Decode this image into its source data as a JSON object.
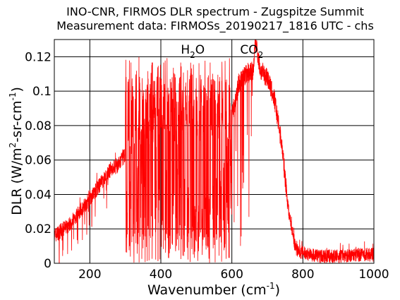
{
  "chart_data": {
    "type": "line",
    "title": "INO-CNR, FIRMOS DLR spectrum - Zugspitze Summit",
    "subtitle": "Measurement data: FIRMOSs_20190217_1816 UTC - chs",
    "xlabel": {
      "main": "Wavenumber (cm",
      "sup": "-1",
      "end": ")"
    },
    "ylabel": {
      "p1": "DLR (W/m",
      "sup1": "2",
      "p2": "-sr-cm",
      "sup2": "-1",
      "p3": ")"
    },
    "xlim": [
      100,
      1000
    ],
    "ylim": [
      0,
      0.13
    ],
    "xticks": [
      200,
      400,
      600,
      800,
      1000
    ],
    "xtick_labels": [
      "200",
      "400",
      "600",
      "800",
      "1000"
    ],
    "yticks": [
      0,
      0.02,
      0.04,
      0.06,
      0.08,
      0.1,
      0.12
    ],
    "ytick_labels": [
      "0",
      "0.02",
      "0.04",
      "0.06",
      "0.08",
      "0.1",
      "0.12"
    ],
    "grid": true,
    "annotations": [
      {
        "main": "H",
        "sub": "2",
        "end": "O",
        "x": 500
      },
      {
        "main": "CO",
        "sub": "2",
        "end": "",
        "x": 667
      }
    ],
    "line_color": "#ff0000",
    "series": [
      {
        "x": [
          100,
          120,
          140,
          160,
          180,
          200,
          220,
          240,
          260,
          280,
          300,
          320,
          340,
          360,
          380,
          400,
          420,
          440,
          460,
          480,
          500,
          520,
          540,
          560,
          580,
          600,
          620,
          640,
          660,
          667,
          680,
          700,
          720,
          740,
          760,
          780,
          800,
          850,
          900,
          950,
          1000
        ],
        "values": [
          0.016,
          0.019,
          0.022,
          0.027,
          0.032,
          0.038,
          0.043,
          0.049,
          0.055,
          0.057,
          0.063,
          0.07,
          0.074,
          0.078,
          0.083,
          0.085,
          0.08,
          0.07,
          0.05,
          0.04,
          0.03,
          0.035,
          0.04,
          0.05,
          0.06,
          0.085,
          0.105,
          0.11,
          0.112,
          0.13,
          0.112,
          0.108,
          0.095,
          0.07,
          0.03,
          0.008,
          0.006,
          0.004,
          0.004,
          0.005,
          0.005
        ]
      }
    ]
  }
}
